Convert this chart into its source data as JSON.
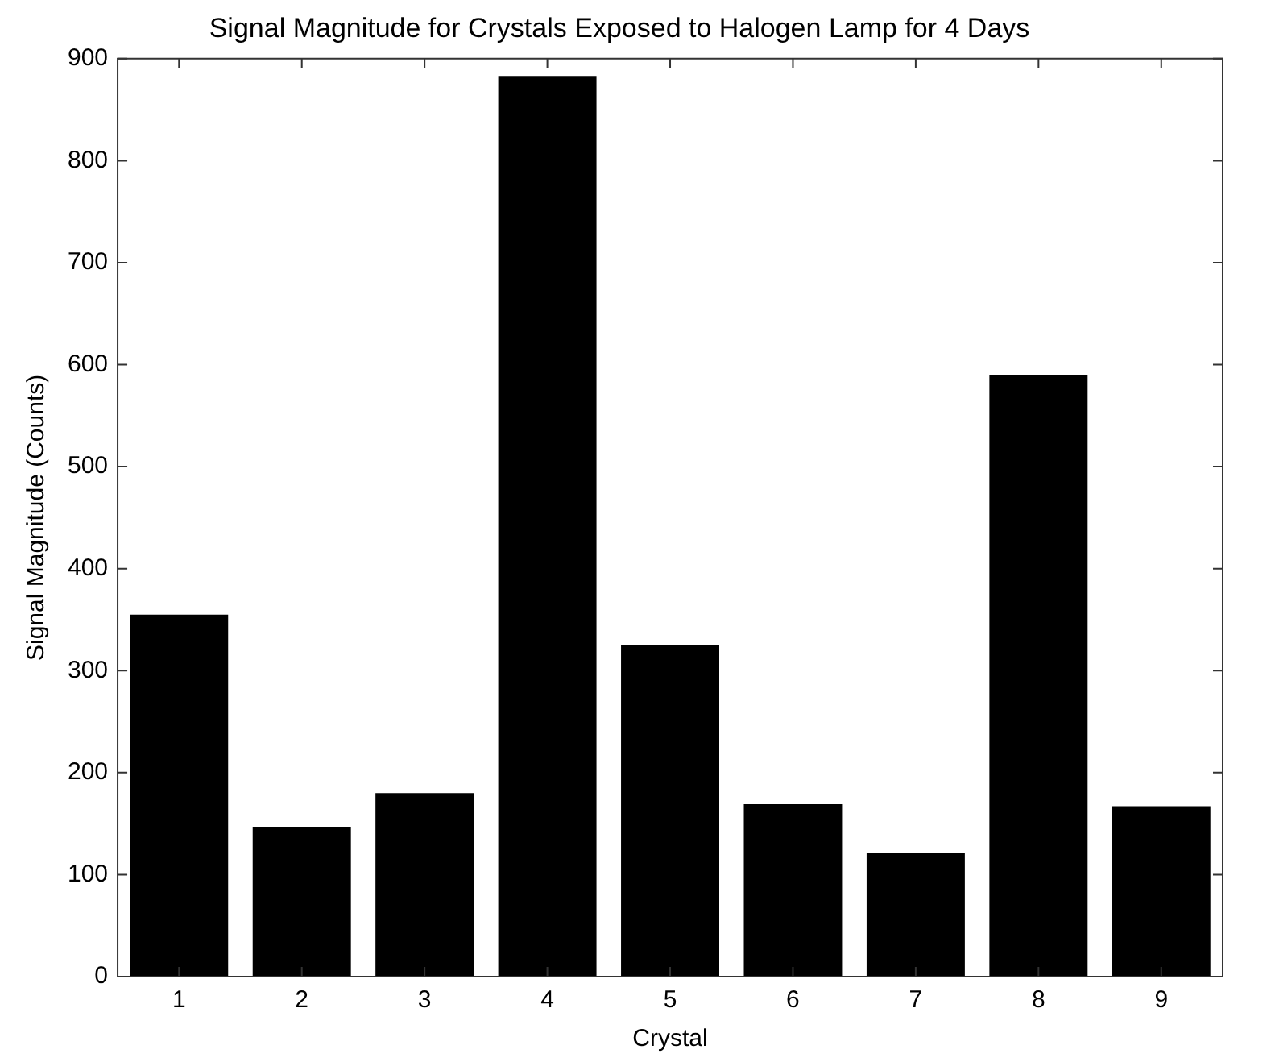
{
  "chart_data": {
    "type": "bar",
    "title": "Signal Magnitude for Crystals Exposed to Halogen Lamp for 4 Days",
    "xlabel": "Crystal",
    "ylabel": "Signal Magnitude (Counts)",
    "categories": [
      "1",
      "2",
      "3",
      "4",
      "5",
      "6",
      "7",
      "8",
      "9"
    ],
    "values": [
      355,
      147,
      180,
      883,
      325,
      169,
      121,
      590,
      167
    ],
    "color": "#000000",
    "ylim": [
      0,
      900
    ],
    "yticks": [
      0,
      100,
      200,
      300,
      400,
      500,
      600,
      700,
      800,
      900
    ],
    "grid": false,
    "legend": false
  }
}
